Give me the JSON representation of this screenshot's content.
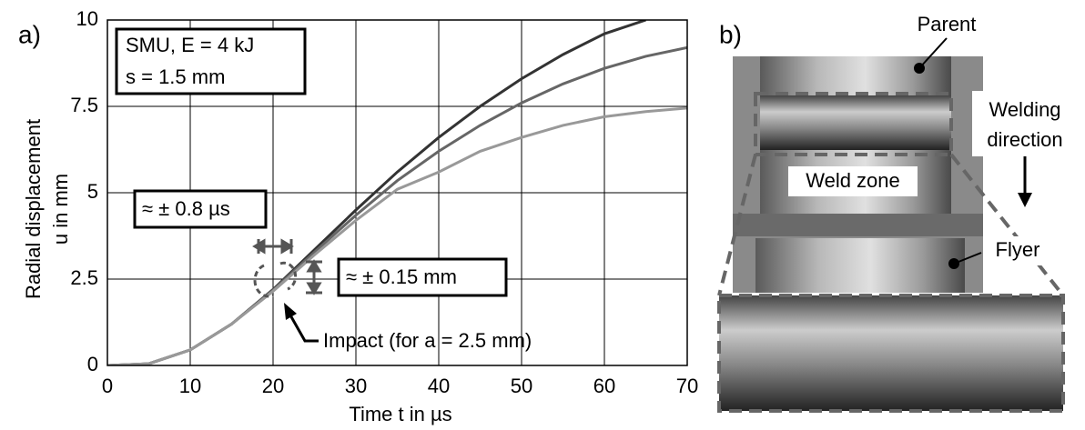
{
  "chart_data": {
    "type": "line",
    "panel_a": "a)",
    "panel_b": "b)",
    "xlabel": "Time t in µs",
    "ylabel": [
      "Radial displacement",
      "u in mm"
    ],
    "x": [
      0,
      5,
      10,
      15,
      20,
      25,
      30,
      35,
      40,
      45,
      50,
      55,
      60,
      65,
      70
    ],
    "series": [
      {
        "color": "#333333",
        "values": [
          0,
          0.05,
          0.45,
          1.2,
          2.2,
          3.35,
          4.5,
          5.6,
          6.6,
          7.5,
          8.3,
          9.0,
          9.6,
          10.0,
          null
        ]
      },
      {
        "color": "#666666",
        "values": [
          0,
          0.05,
          0.45,
          1.2,
          2.18,
          3.28,
          4.35,
          5.35,
          6.2,
          6.95,
          7.6,
          8.15,
          8.6,
          8.95,
          9.2
        ]
      },
      {
        "color": "#999999",
        "values": [
          0,
          0.05,
          0.45,
          1.2,
          2.15,
          3.2,
          4.2,
          5.1,
          5.6,
          6.2,
          6.6,
          6.95,
          7.2,
          7.35,
          7.45
        ]
      }
    ],
    "xlim": [
      0,
      70
    ],
    "ylim": [
      0,
      10
    ],
    "xticks": [
      0,
      10,
      20,
      30,
      40,
      50,
      60,
      70
    ],
    "yticks": [
      0,
      2.5,
      5,
      7.5,
      10
    ],
    "grid": true,
    "annotations": {
      "params": [
        "SMU, E = 4 kJ",
        "s = 1.5 mm"
      ],
      "time_scatter": "≈ ± 0.8 µs",
      "disp_scatter": "≈ ± 0.15 mm",
      "impact": "Impact (for a = 2.5 mm)"
    },
    "photo_labels": {
      "parent": "Parent",
      "welding_direction": [
        "Welding",
        "direction"
      ],
      "weld_zone": "Weld zone",
      "flyer": "Flyer"
    }
  }
}
